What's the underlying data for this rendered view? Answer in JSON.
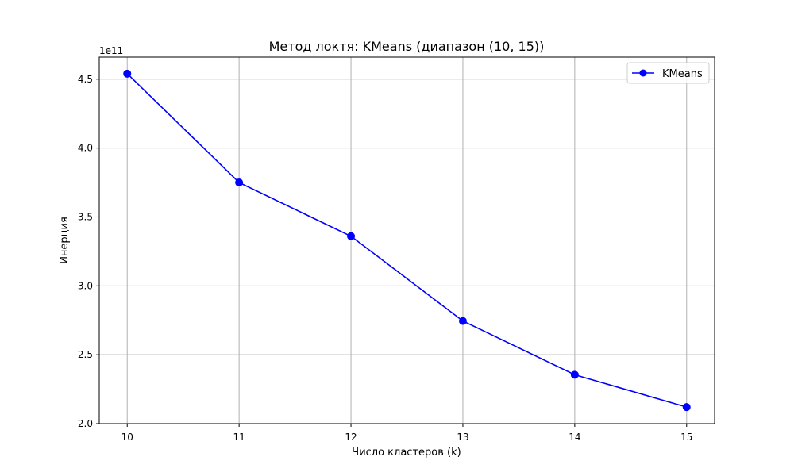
{
  "chart_data": {
    "type": "line",
    "title": "Метод локтя: KMeans (диапазон (10, 15))",
    "xlabel": "Число кластеров (k)",
    "ylabel": "Инерция",
    "y_offset_label": "1e11",
    "x": [
      10,
      11,
      12,
      13,
      14,
      15
    ],
    "x_ticks": [
      10,
      11,
      12,
      13,
      14,
      15
    ],
    "x_tick_labels": [
      "10",
      "11",
      "12",
      "13",
      "14",
      "15"
    ],
    "y_ticks": [
      2.0,
      2.5,
      3.0,
      3.5,
      4.0,
      4.5
    ],
    "y_tick_labels": [
      "2.0",
      "2.5",
      "3.0",
      "3.5",
      "4.0",
      "4.5"
    ],
    "xlim": [
      9.75,
      15.25
    ],
    "ylim": [
      2.0,
      4.66
    ],
    "grid": true,
    "legend_position": "top-right",
    "series": [
      {
        "name": "KMeans",
        "color": "#0000ff",
        "marker": "circle",
        "values": [
          4.54,
          3.75,
          3.36,
          2.745,
          2.355,
          2.12
        ]
      }
    ]
  }
}
